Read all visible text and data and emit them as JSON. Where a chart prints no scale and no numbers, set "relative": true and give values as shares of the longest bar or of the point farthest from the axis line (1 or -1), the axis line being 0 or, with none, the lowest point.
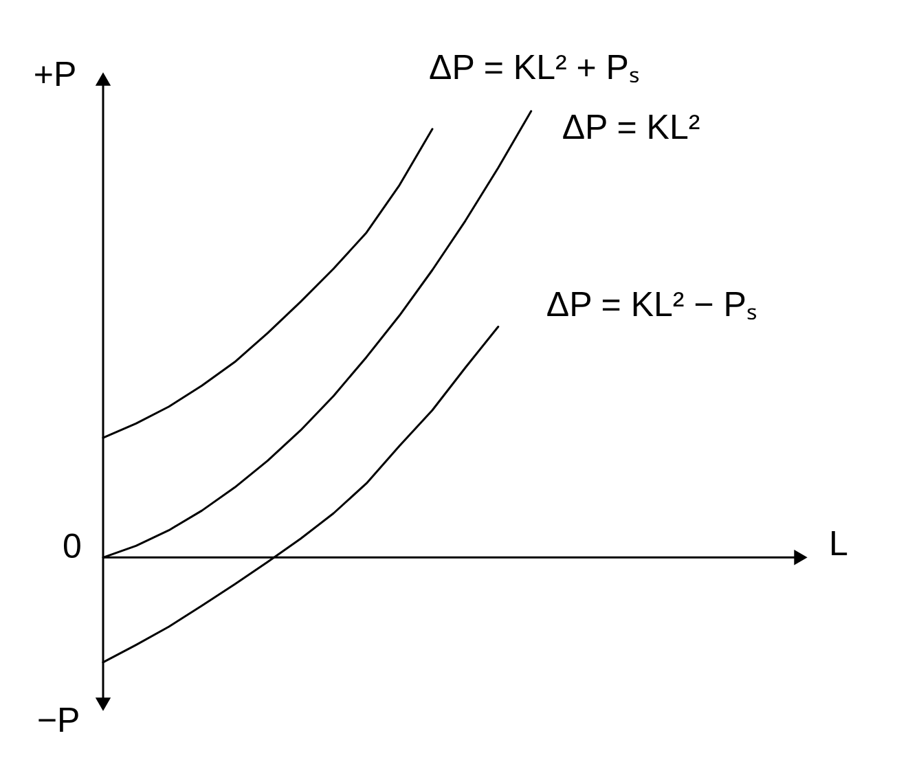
{
  "chart_data": {
    "type": "line",
    "relative": true,
    "ylabel": "+P",
    "categories": [
      null,
      null,
      null,
      null,
      null,
      null,
      null,
      null,
      null,
      null,
      null,
      null,
      null,
      null
    ],
    "series": [
      {
        "name": "ΔP = KL² + Pₛ",
        "color": "#000000",
        "values": [
          0.268,
          0.3,
          0.338,
          0.385,
          0.438,
          0.503,
          0.573,
          0.647,
          0.728,
          0.834,
          0.96,
          null,
          null,
          null
        ]
      },
      {
        "name": "ΔP = KL²",
        "color": "#000000",
        "values": [
          0,
          0.026,
          0.061,
          0.105,
          0.157,
          0.217,
          0.285,
          0.362,
          0.449,
          0.542,
          0.644,
          0.754,
          0.873,
          1
        ]
      },
      {
        "name": "ΔP = KL² − Pₛ",
        "color": "#000000",
        "values": [
          -0.235,
          -0.196,
          -0.155,
          -0.108,
          -0.06,
          -0.01,
          0.042,
          0.099,
          0.166,
          0.25,
          0.33,
          0.425,
          0.517,
          null
        ]
      }
    ],
    "annotations": [
      "0",
      "−P",
      "L"
    ]
  }
}
